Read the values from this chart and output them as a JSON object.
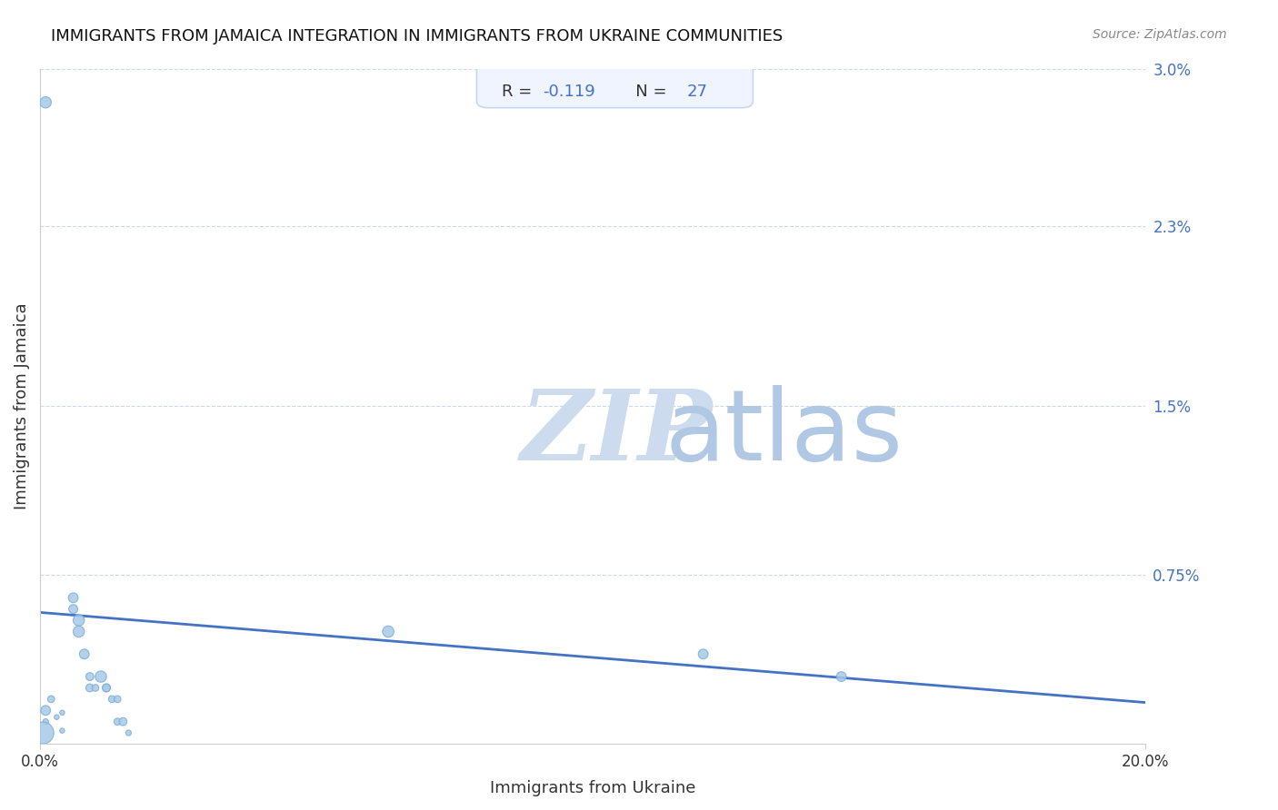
{
  "title": "IMMIGRANTS FROM JAMAICA INTEGRATION IN IMMIGRANTS FROM UKRAINE COMMUNITIES",
  "source": "Source: ZipAtlas.com",
  "xlabel": "Immigrants from Ukraine",
  "ylabel": "Immigrants from Jamaica",
  "xlim": [
    0.0,
    0.2
  ],
  "ylim": [
    0.0,
    0.03
  ],
  "xtick_labels": [
    "0.0%",
    "20.0%"
  ],
  "xtick_positions": [
    0.0,
    0.2
  ],
  "ytick_labels": [
    "3.0%",
    "2.3%",
    "1.5%",
    "0.75%"
  ],
  "ytick_positions": [
    0.03,
    0.023,
    0.015,
    0.0075
  ],
  "R_value": "-0.119",
  "N_value": "27",
  "scatter_x": [
    0.001,
    0.002,
    0.001,
    0.0005,
    0.003,
    0.004,
    0.004,
    0.006,
    0.006,
    0.007,
    0.007,
    0.008,
    0.009,
    0.009,
    0.01,
    0.011,
    0.012,
    0.012,
    0.013,
    0.014,
    0.014,
    0.015,
    0.016,
    0.063,
    0.12,
    0.145,
    0.001
  ],
  "scatter_y": [
    0.0015,
    0.002,
    0.001,
    0.0005,
    0.0012,
    0.0014,
    0.0006,
    0.0065,
    0.006,
    0.0055,
    0.005,
    0.004,
    0.003,
    0.0025,
    0.0025,
    0.003,
    0.0025,
    0.0025,
    0.002,
    0.002,
    0.001,
    0.001,
    0.0005,
    0.005,
    0.004,
    0.003,
    0.0285
  ],
  "scatter_sizes": [
    60,
    30,
    20,
    300,
    15,
    15,
    15,
    60,
    50,
    80,
    80,
    60,
    40,
    40,
    30,
    80,
    40,
    40,
    30,
    30,
    30,
    40,
    20,
    80,
    60,
    60,
    80
  ],
  "trend_x": [
    0.0,
    0.2
  ],
  "trend_y_start": 0.00585,
  "trend_y_end": 0.00185,
  "dot_color": "#a8c8e8",
  "dot_edge_color": "#7aafd4",
  "trend_color": "#4472c4",
  "grid_color": "#d0d8e8",
  "title_color": "#111111",
  "axis_label_color": "#333333",
  "ytick_color": "#4472c4",
  "xtick_color": "#333333",
  "watermark_color_zip": "#ccdcee",
  "watermark_color_atlas": "#b0c8e4",
  "annotation_box_color": "#f0f4ff",
  "annotation_border_color": "#c8d8ec"
}
